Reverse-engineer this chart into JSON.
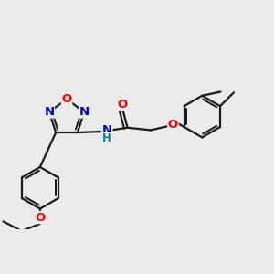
{
  "bg_color": "#ebebeb",
  "line_color": "#1a1a1a",
  "bond_width": 1.6,
  "atom_colors": {
    "O": "#ff0000",
    "N": "#0000cd",
    "C": "#1a1a1a",
    "H": "#008080"
  },
  "font_size": 9.5,
  "font_size_small": 8.5
}
